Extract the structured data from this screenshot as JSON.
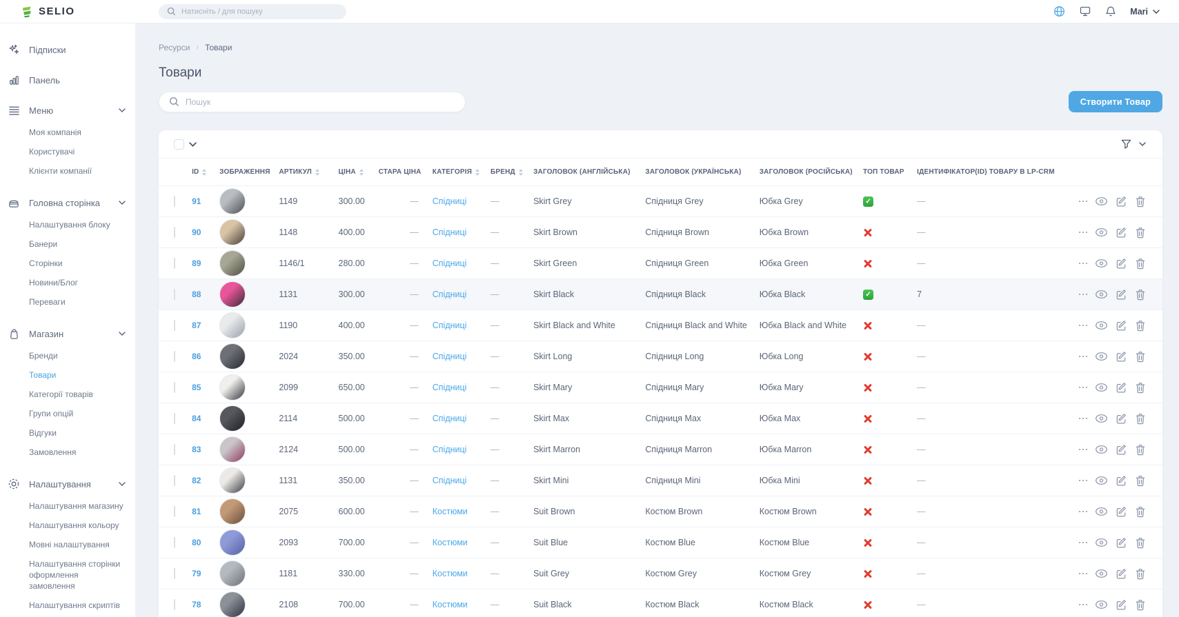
{
  "topbar": {
    "logo_text": "SELIO",
    "search_placeholder": "Натисніть / для пошуку",
    "user_name": "Mari"
  },
  "sidebar": {
    "sections": [
      {
        "key": "subscriptions",
        "label": "Підписки",
        "icon": "sparkles-icon",
        "expandable": false,
        "children": []
      },
      {
        "key": "dashboard",
        "label": "Панель",
        "icon": "bar-chart-icon",
        "expandable": false,
        "children": []
      },
      {
        "key": "menu",
        "label": "Меню",
        "icon": "menu-icon",
        "expandable": true,
        "children": [
          {
            "key": "my-company",
            "label": "Моя компанія"
          },
          {
            "key": "users",
            "label": "Користувачі"
          },
          {
            "key": "company-clients",
            "label": "Клієнти компанії"
          }
        ]
      },
      {
        "key": "home-page",
        "label": "Головна сторінка",
        "icon": "home-box-icon",
        "expandable": true,
        "children": [
          {
            "key": "block-settings",
            "label": "Налаштування блоку"
          },
          {
            "key": "banners",
            "label": "Банери"
          },
          {
            "key": "pages",
            "label": "Сторінки"
          },
          {
            "key": "news-blog",
            "label": "Новини/Блог"
          },
          {
            "key": "advantages",
            "label": "Переваги"
          }
        ]
      },
      {
        "key": "shop",
        "label": "Магазин",
        "icon": "shop-bag-icon",
        "expandable": true,
        "children": [
          {
            "key": "brands",
            "label": "Бренди"
          },
          {
            "key": "products",
            "label": "Товари",
            "active": true
          },
          {
            "key": "product-categories",
            "label": "Категорії товарів"
          },
          {
            "key": "option-groups",
            "label": "Групи опцій"
          },
          {
            "key": "reviews",
            "label": "Відгуки"
          },
          {
            "key": "orders",
            "label": "Замовлення"
          }
        ]
      },
      {
        "key": "settings",
        "label": "Налаштування",
        "icon": "gear-icon",
        "expandable": true,
        "children": [
          {
            "key": "shop-settings",
            "label": "Налаштування магазину"
          },
          {
            "key": "color-settings",
            "label": "Налаштування кольору"
          },
          {
            "key": "language-settings",
            "label": "Мовні налаштування"
          },
          {
            "key": "checkout-page-settings",
            "label": "Налаштування сторінки оформлення замовлення"
          },
          {
            "key": "scripts-settings",
            "label": "Налаштування скриптів"
          }
        ]
      }
    ]
  },
  "breadcrumb": {
    "items": [
      "Ресурси",
      "Товари"
    ]
  },
  "page": {
    "title": "Товари",
    "search_placeholder": "Пошук",
    "create_button": "Створити Товар"
  },
  "table": {
    "headers": [
      {
        "label": "ID",
        "sortable": true
      },
      {
        "label": "ЗОБРАЖЕННЯ",
        "sortable": false
      },
      {
        "label": "АРТИКУЛ",
        "sortable": true
      },
      {
        "label": "ЦІНА",
        "sortable": true
      },
      {
        "label": "СТАРА ЦІНА",
        "sortable": false
      },
      {
        "label": "КАТЕГОРІЯ",
        "sortable": true
      },
      {
        "label": "БРЕНД",
        "sortable": true
      },
      {
        "label": "ЗАГОЛОВОК (АНГЛІЙСЬКА)",
        "sortable": false
      },
      {
        "label": "ЗАГОЛОВОК (УКРАЇНСЬКА)",
        "sortable": false
      },
      {
        "label": "ЗАГОЛОВОК (РОСІЙСЬКА)",
        "sortable": false
      },
      {
        "label": "ТОП ТОВАР",
        "sortable": false
      },
      {
        "label": "ІДЕНТИФІКАТОР(ID) ТОВАРУ В LP-CRM",
        "sortable": false
      }
    ],
    "rows": [
      {
        "id": "91",
        "sku": "1149",
        "price": "300.00",
        "old_price": "—",
        "category": "Спідниці",
        "brand": "—",
        "title_en": "Skirt Grey",
        "title_uk": "Спідниця Grey",
        "title_ru": "Юбка Grey",
        "top_product": true,
        "lp_crm_id": "—",
        "highlighted": false,
        "image_colors": [
          "#b9bcc0",
          "#4b4f55"
        ]
      },
      {
        "id": "90",
        "sku": "1148",
        "price": "400.00",
        "old_price": "—",
        "category": "Спідниці",
        "brand": "—",
        "title_en": "Skirt Brown",
        "title_uk": "Спідниця Brown",
        "title_ru": "Юбка Brown",
        "top_product": false,
        "lp_crm_id": "—",
        "highlighted": false,
        "image_colors": [
          "#d9c3a5",
          "#463f39"
        ]
      },
      {
        "id": "89",
        "sku": "1146/1",
        "price": "280.00",
        "old_price": "—",
        "category": "Спідниці",
        "brand": "—",
        "title_en": "Skirt Green",
        "title_uk": "Спідниця Green",
        "title_ru": "Юбка Green",
        "top_product": false,
        "lp_crm_id": "—",
        "highlighted": false,
        "image_colors": [
          "#a7a795",
          "#4e4f43"
        ]
      },
      {
        "id": "88",
        "sku": "1131",
        "price": "300.00",
        "old_price": "—",
        "category": "Спідниці",
        "brand": "—",
        "title_en": "Skirt Black",
        "title_uk": "Спідниця Black",
        "title_ru": "Юбка Black",
        "top_product": true,
        "lp_crm_id": "7",
        "highlighted": true,
        "image_colors": [
          "#e8559a",
          "#3a2b33"
        ]
      },
      {
        "id": "87",
        "sku": "1190",
        "price": "400.00",
        "old_price": "—",
        "category": "Спідниці",
        "brand": "—",
        "title_en": "Skirt Black and White",
        "title_uk": "Спідниця Black and White",
        "title_ru": "Юбка Black and White",
        "top_product": false,
        "lp_crm_id": "—",
        "highlighted": false,
        "image_colors": [
          "#e8eaec",
          "#9aa0a7"
        ]
      },
      {
        "id": "86",
        "sku": "2024",
        "price": "350.00",
        "old_price": "—",
        "category": "Спідниці",
        "brand": "—",
        "title_en": "Skirt Long",
        "title_uk": "Спідниця Long",
        "title_ru": "Юбка Long",
        "top_product": false,
        "lp_crm_id": "—",
        "highlighted": false,
        "image_colors": [
          "#6d7076",
          "#26282d"
        ]
      },
      {
        "id": "85",
        "sku": "2099",
        "price": "650.00",
        "old_price": "—",
        "category": "Спідниці",
        "brand": "—",
        "title_en": "Skirt Mary",
        "title_uk": "Спідниця Mary",
        "title_ru": "Юбка Mary",
        "top_product": false,
        "lp_crm_id": "—",
        "highlighted": false,
        "image_colors": [
          "#f0efec",
          "#35363c"
        ]
      },
      {
        "id": "84",
        "sku": "2114",
        "price": "500.00",
        "old_price": "—",
        "category": "Спідниці",
        "brand": "—",
        "title_en": "Skirt Max",
        "title_uk": "Спідниця Max",
        "title_ru": "Юбка Max",
        "top_product": false,
        "lp_crm_id": "—",
        "highlighted": false,
        "image_colors": [
          "#56585e",
          "#1d1f24"
        ]
      },
      {
        "id": "83",
        "sku": "2124",
        "price": "500.00",
        "old_price": "—",
        "category": "Спідниці",
        "brand": "—",
        "title_en": "Skirt Marron",
        "title_uk": "Спідниця Marron",
        "title_ru": "Юбка Marron",
        "top_product": false,
        "lp_crm_id": "—",
        "highlighted": false,
        "image_colors": [
          "#c9c5c9",
          "#8e3a5c"
        ]
      },
      {
        "id": "82",
        "sku": "1131",
        "price": "350.00",
        "old_price": "—",
        "category": "Спідниці",
        "brand": "—",
        "title_en": "Skirt Mini",
        "title_uk": "Спідниця Mini",
        "title_ru": "Юбка Mini",
        "top_product": false,
        "lp_crm_id": "—",
        "highlighted": false,
        "image_colors": [
          "#eceae6",
          "#3a3d45"
        ]
      },
      {
        "id": "81",
        "sku": "2075",
        "price": "600.00",
        "old_price": "—",
        "category": "Костюми",
        "brand": "—",
        "title_en": "Suit Brown",
        "title_uk": "Костюм Brown",
        "title_ru": "Костюм Brown",
        "top_product": false,
        "lp_crm_id": "—",
        "highlighted": false,
        "image_colors": [
          "#c39a77",
          "#6a4c37"
        ]
      },
      {
        "id": "80",
        "sku": "2093",
        "price": "700.00",
        "old_price": "—",
        "category": "Костюми",
        "brand": "—",
        "title_en": "Suit Blue",
        "title_uk": "Костюм Blue",
        "title_ru": "Костюм Blue",
        "top_product": false,
        "lp_crm_id": "—",
        "highlighted": false,
        "image_colors": [
          "#8f9ad8",
          "#5560a4"
        ]
      },
      {
        "id": "79",
        "sku": "1181",
        "price": "330.00",
        "old_price": "—",
        "category": "Костюми",
        "brand": "—",
        "title_en": "Suit Grey",
        "title_uk": "Костюм Grey",
        "title_ru": "Костюм Grey",
        "top_product": false,
        "lp_crm_id": "—",
        "highlighted": false,
        "image_colors": [
          "#b4b8bf",
          "#6c7077"
        ]
      },
      {
        "id": "78",
        "sku": "2108",
        "price": "700.00",
        "old_price": "—",
        "category": "Костюми",
        "brand": "—",
        "title_en": "Suit Black",
        "title_uk": "Костюм Black",
        "title_ru": "Костюм Black",
        "top_product": false,
        "lp_crm_id": "—",
        "highlighted": false,
        "image_colors": [
          "#8c9097",
          "#2c3240"
        ]
      }
    ]
  },
  "colors": {
    "accent_blue": "#4aa4e4",
    "button_blue": "#4fa8e4",
    "top_yes_green": "#35b54a",
    "top_no_red": "#e23b2e",
    "page_background": "#eef1f6"
  }
}
